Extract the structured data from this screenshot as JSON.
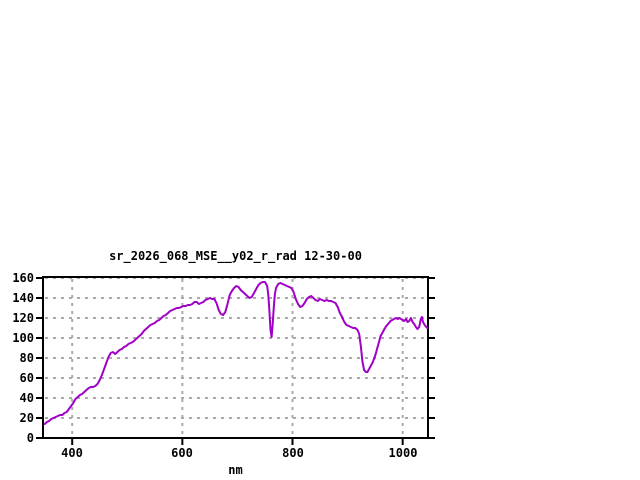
{
  "chart_data": {
    "type": "line",
    "title": "sr_2026_068_MSE__y02_r_rad 12-30-00",
    "xlabel": "nm",
    "ylabel": "",
    "xlim": [
      347,
      1046
    ],
    "ylim": [
      0,
      161
    ],
    "x_ticks": [
      400,
      600,
      800,
      1000
    ],
    "y_ticks": [
      0,
      20,
      40,
      60,
      80,
      100,
      120,
      140,
      160
    ],
    "grid": true,
    "legend_position": "none",
    "colors": {
      "line": "#a000c8",
      "grid": "#aaaaaa",
      "frame": "#000000",
      "text": "#000000",
      "background": "#ffffff"
    },
    "series": [
      {
        "name": "sr_2026_068_MSE__y02_r_rad",
        "x": [
          350,
          354,
          358,
          362,
          366,
          370,
          374,
          378,
          382,
          386,
          390,
          394,
          398,
          402,
          406,
          410,
          414,
          418,
          422,
          426,
          430,
          434,
          438,
          442,
          446,
          450,
          454,
          458,
          462,
          466,
          470,
          474,
          478,
          482,
          486,
          490,
          494,
          498,
          502,
          506,
          510,
          514,
          518,
          522,
          526,
          530,
          534,
          538,
          542,
          546,
          550,
          554,
          558,
          562,
          566,
          570,
          574,
          578,
          582,
          586,
          590,
          594,
          598,
          602,
          606,
          610,
          614,
          618,
          622,
          626,
          630,
          634,
          638,
          642,
          646,
          650,
          654,
          658,
          662,
          666,
          670,
          674,
          678,
          682,
          686,
          690,
          694,
          698,
          702,
          706,
          710,
          714,
          718,
          722,
          726,
          730,
          734,
          738,
          742,
          746,
          750,
          754,
          756,
          758,
          760,
          762,
          764,
          766,
          768,
          770,
          774,
          778,
          782,
          786,
          790,
          794,
          798,
          802,
          806,
          810,
          814,
          818,
          822,
          826,
          830,
          834,
          838,
          842,
          846,
          850,
          854,
          858,
          862,
          866,
          870,
          874,
          878,
          882,
          886,
          890,
          894,
          898,
          902,
          906,
          910,
          914,
          918,
          921,
          924,
          927,
          930,
          933,
          936,
          939,
          942,
          945,
          948,
          951,
          954,
          957,
          960,
          963,
          966,
          969,
          972,
          975,
          978,
          981,
          984,
          988,
          991,
          994,
          997,
          1000,
          1003,
          1006,
          1009,
          1012,
          1015,
          1018,
          1021,
          1024,
          1027,
          1030,
          1033,
          1035,
          1037,
          1040,
          1043,
          1045
        ],
        "y": [
          14,
          16,
          17,
          19,
          20,
          21,
          22,
          23,
          23,
          25,
          26,
          29,
          32,
          35,
          39,
          41,
          43,
          44,
          46,
          48,
          50,
          51,
          51,
          52,
          54,
          58,
          63,
          69,
          75,
          81,
          85,
          86,
          84,
          86,
          88,
          89,
          91,
          92,
          94,
          95,
          96,
          98,
          100,
          102,
          104,
          107,
          109,
          111,
          113,
          114,
          115,
          117,
          118,
          120,
          122,
          123,
          125,
          127,
          128,
          129,
          130,
          130,
          131,
          132,
          132,
          133,
          133,
          134,
          136,
          136,
          134,
          135,
          136,
          138,
          139,
          140,
          139,
          139,
          135,
          128,
          124,
          123,
          126,
          134,
          143,
          147,
          150,
          152,
          151,
          148,
          146,
          144,
          142,
          140,
          141,
          145,
          149,
          153,
          155,
          156,
          156,
          152,
          143,
          127,
          108,
          101,
          114,
          131,
          144,
          150,
          154,
          155,
          154,
          153,
          152,
          151,
          150,
          146,
          139,
          134,
          131,
          132,
          135,
          139,
          141,
          142,
          140,
          138,
          137,
          139,
          138,
          137,
          138,
          137,
          137,
          136,
          135,
          131,
          125,
          121,
          116,
          113,
          112,
          111,
          110,
          110,
          108,
          104,
          92,
          76,
          68,
          66,
          66,
          69,
          72,
          75,
          79,
          84,
          90,
          96,
          102,
          105,
          108,
          111,
          113,
          115,
          117,
          118,
          119,
          120,
          119,
          120,
          119,
          118,
          117,
          119,
          116,
          117,
          120,
          116,
          114,
          111,
          109,
          111,
          119,
          121,
          116,
          113,
          111,
          110
        ]
      }
    ]
  }
}
